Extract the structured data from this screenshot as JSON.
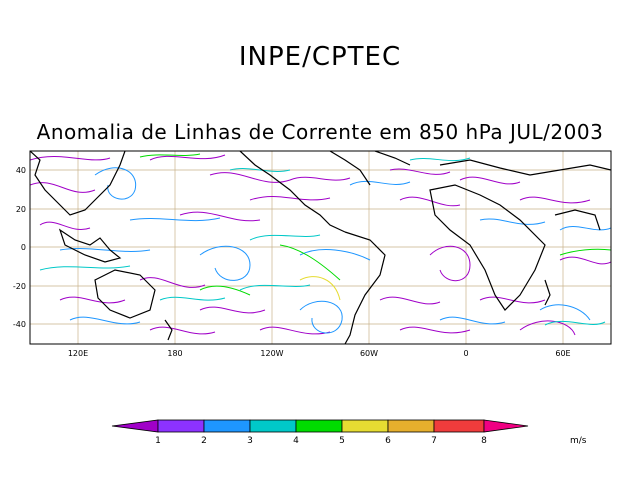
{
  "header": {
    "organization": "INPE/CPTEC",
    "title": "Anomalia de Linhas de Corrente em 850 hPa JUL/2003"
  },
  "map": {
    "projection": "cylindrical equidistant",
    "lon_range": [
      90,
      450
    ],
    "lat_range": [
      -50,
      50
    ],
    "lat_ticks": [
      "40",
      "20",
      "0",
      "-20",
      "-40"
    ],
    "lat_tick_values": [
      40,
      20,
      0,
      -20,
      -40
    ],
    "lon_ticks": [
      "120E",
      "180",
      "120W",
      "60W",
      "0",
      "60E"
    ],
    "lon_tick_values": [
      120,
      180,
      240,
      300,
      360,
      420
    ],
    "grid": true,
    "land_color": "#000000",
    "grid_color": "#c8b28a"
  },
  "legend": {
    "labels": [
      "1",
      "2",
      "3",
      "4",
      "5",
      "6",
      "7",
      "8"
    ],
    "colors": [
      "#a000c8",
      "#8c32ff",
      "#1e96ff",
      "#00c8c8",
      "#00dc00",
      "#e6dc32",
      "#e6af2d",
      "#f03c3c",
      "#f00082"
    ],
    "unit": "m/s"
  }
}
